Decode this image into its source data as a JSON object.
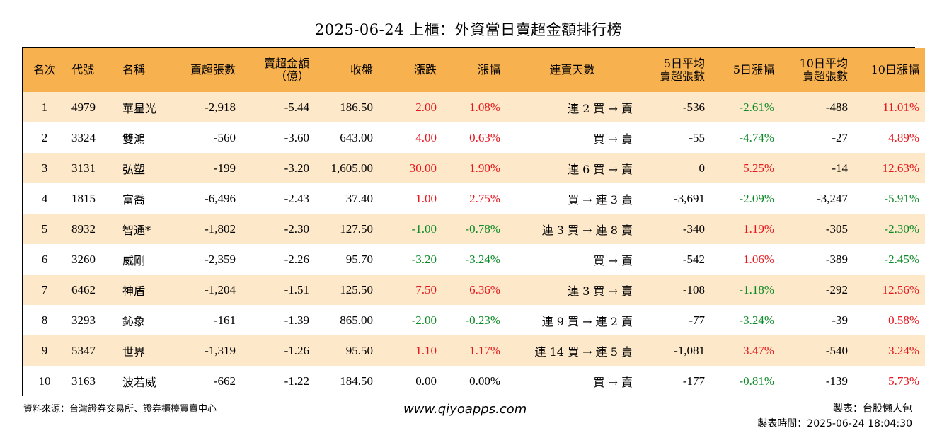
{
  "title": "2025-06-24 上櫃：外資當日賣超金額排行榜",
  "colors": {
    "header_bg": "#f7b14f",
    "row_alt_bg": "#fde9c9",
    "up": "#e8161c",
    "down": "#0c8a26"
  },
  "headers": {
    "rank": "名次",
    "code": "代號",
    "name": "名稱",
    "sell_shares": "賣超張數",
    "sell_amount_1": "賣超金額",
    "sell_amount_2": "（億）",
    "close": "收盤",
    "change": "漲跌",
    "change_pct": "漲幅",
    "streak": "連賣天數",
    "avg5_1": "5日平均",
    "avg5_2": "賣超張數",
    "pct5": "5日漲幅",
    "avg10_1": "10日平均",
    "avg10_2": "賣超張數",
    "pct10": "10日漲幅"
  },
  "rows": [
    {
      "rank": "1",
      "code": "4979",
      "name": "華星光",
      "sell_shares": "-2,918",
      "sell_amount": "-5.44",
      "close": "186.50",
      "change": "2.00",
      "change_color": "red",
      "change_pct": "1.08%",
      "change_pct_color": "red",
      "streak": "連 2 買 → 賣",
      "avg5": "-536",
      "pct5": "-2.61%",
      "pct5_color": "green",
      "avg10": "-488",
      "pct10": "11.01%",
      "pct10_color": "red"
    },
    {
      "rank": "2",
      "code": "3324",
      "name": "雙鴻",
      "sell_shares": "-560",
      "sell_amount": "-3.60",
      "close": "643.00",
      "change": "4.00",
      "change_color": "red",
      "change_pct": "0.63%",
      "change_pct_color": "red",
      "streak": "買 → 賣",
      "avg5": "-55",
      "pct5": "-4.74%",
      "pct5_color": "green",
      "avg10": "-27",
      "pct10": "4.89%",
      "pct10_color": "red"
    },
    {
      "rank": "3",
      "code": "3131",
      "name": "弘塑",
      "sell_shares": "-199",
      "sell_amount": "-3.20",
      "close": "1,605.00",
      "change": "30.00",
      "change_color": "red",
      "change_pct": "1.90%",
      "change_pct_color": "red",
      "streak": "連 6 買 → 賣",
      "avg5": "0",
      "pct5": "5.25%",
      "pct5_color": "red",
      "avg10": "-14",
      "pct10": "12.63%",
      "pct10_color": "red"
    },
    {
      "rank": "4",
      "code": "1815",
      "name": "富喬",
      "sell_shares": "-6,496",
      "sell_amount": "-2.43",
      "close": "37.40",
      "change": "1.00",
      "change_color": "red",
      "change_pct": "2.75%",
      "change_pct_color": "red",
      "streak": "買 → 連 3 賣",
      "avg5": "-3,691",
      "pct5": "-2.09%",
      "pct5_color": "green",
      "avg10": "-3,247",
      "pct10": "-5.91%",
      "pct10_color": "green"
    },
    {
      "rank": "5",
      "code": "8932",
      "name": "智通*",
      "sell_shares": "-1,802",
      "sell_amount": "-2.30",
      "close": "127.50",
      "change": "-1.00",
      "change_color": "green",
      "change_pct": "-0.78%",
      "change_pct_color": "green",
      "streak": "連 3 買 → 連 8 賣",
      "avg5": "-340",
      "pct5": "1.19%",
      "pct5_color": "red",
      "avg10": "-305",
      "pct10": "-2.30%",
      "pct10_color": "green"
    },
    {
      "rank": "6",
      "code": "3260",
      "name": "威剛",
      "sell_shares": "-2,359",
      "sell_amount": "-2.26",
      "close": "95.70",
      "change": "-3.20",
      "change_color": "green",
      "change_pct": "-3.24%",
      "change_pct_color": "green",
      "streak": "買 → 賣",
      "avg5": "-542",
      "pct5": "1.06%",
      "pct5_color": "red",
      "avg10": "-389",
      "pct10": "-2.45%",
      "pct10_color": "green"
    },
    {
      "rank": "7",
      "code": "6462",
      "name": "神盾",
      "sell_shares": "-1,204",
      "sell_amount": "-1.51",
      "close": "125.50",
      "change": "7.50",
      "change_color": "red",
      "change_pct": "6.36%",
      "change_pct_color": "red",
      "streak": "連 3 買 → 賣",
      "avg5": "-108",
      "pct5": "-1.18%",
      "pct5_color": "green",
      "avg10": "-292",
      "pct10": "12.56%",
      "pct10_color": "red"
    },
    {
      "rank": "8",
      "code": "3293",
      "name": "鈊象",
      "sell_shares": "-161",
      "sell_amount": "-1.39",
      "close": "865.00",
      "change": "-2.00",
      "change_color": "green",
      "change_pct": "-0.23%",
      "change_pct_color": "green",
      "streak": "連 9 買 → 連 2 賣",
      "avg5": "-77",
      "pct5": "-3.24%",
      "pct5_color": "green",
      "avg10": "-39",
      "pct10": "0.58%",
      "pct10_color": "red"
    },
    {
      "rank": "9",
      "code": "5347",
      "name": "世界",
      "sell_shares": "-1,319",
      "sell_amount": "-1.26",
      "close": "95.50",
      "change": "1.10",
      "change_color": "red",
      "change_pct": "1.17%",
      "change_pct_color": "red",
      "streak": "連 14 買 → 連 5 賣",
      "avg5": "-1,081",
      "pct5": "3.47%",
      "pct5_color": "red",
      "avg10": "-540",
      "pct10": "3.24%",
      "pct10_color": "red"
    },
    {
      "rank": "10",
      "code": "3163",
      "name": "波若威",
      "sell_shares": "-662",
      "sell_amount": "-1.22",
      "close": "184.50",
      "change": "0.00",
      "change_color": "black",
      "change_pct": "0.00%",
      "change_pct_color": "black",
      "streak": "買 → 賣",
      "avg5": "-177",
      "pct5": "-0.81%",
      "pct5_color": "green",
      "avg10": "-139",
      "pct10": "5.73%",
      "pct10_color": "red"
    }
  ],
  "footer": {
    "source": "資料來源：台灣證券交易所、證券櫃檯買賣中心",
    "website": "www.qiyoapps.com",
    "maker": "製表：台股懶人包",
    "made_time": "製表時間：2025-06-24 18:04:30"
  }
}
